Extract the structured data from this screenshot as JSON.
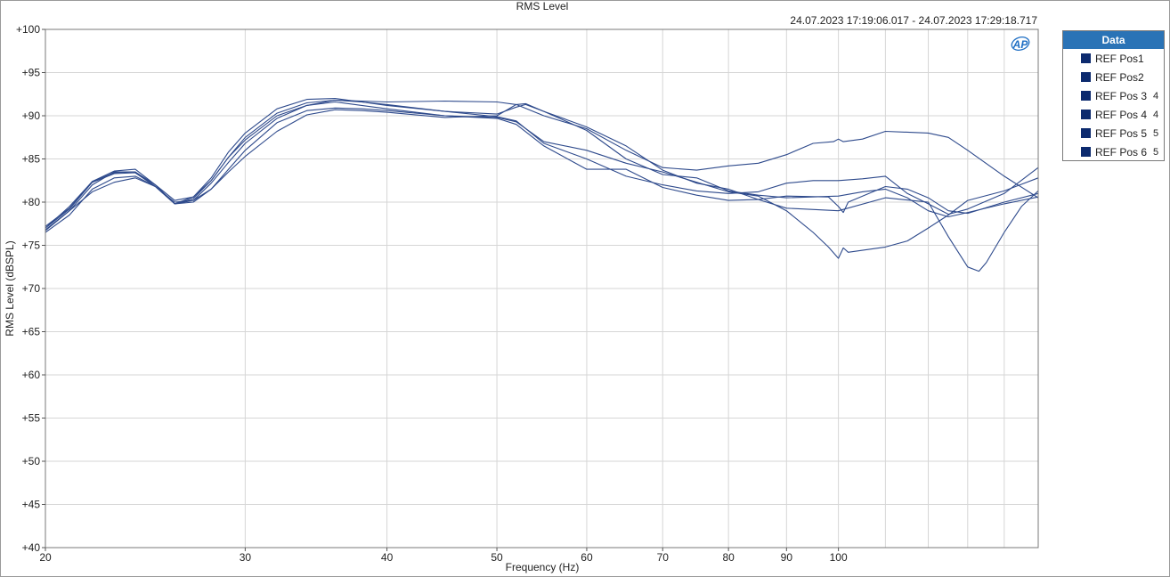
{
  "chart_data": {
    "type": "line",
    "title": "RMS Level",
    "subtitle": "24.07.2023 17:19:06.017 - 24.07.2023 17:29:18.717",
    "xlabel": "Frequency (Hz)",
    "ylabel": "RMS Level (dBSPL)",
    "x_scale": "log",
    "xlim": [
      20,
      150
    ],
    "ylim": [
      40,
      100
    ],
    "x_ticks": [
      20,
      30,
      40,
      50,
      60,
      70,
      80,
      90,
      100
    ],
    "x_tick_labels": [
      "20",
      "30",
      "40",
      "50",
      "60",
      "70",
      "80",
      "90",
      "100"
    ],
    "x_minor_ticks": [
      110,
      120,
      130,
      140
    ],
    "y_ticks": [
      40,
      45,
      50,
      55,
      60,
      65,
      70,
      75,
      80,
      85,
      90,
      95,
      100
    ],
    "y_tick_labels": [
      "+40",
      "+45",
      "+50",
      "+55",
      "+60",
      "+65",
      "+70",
      "+75",
      "+80",
      "+85",
      "+90",
      "+95",
      "+100"
    ],
    "grid": true,
    "legend_position": "right",
    "line_color": "#2e4a8c",
    "series": [
      {
        "name": "REF Pos1",
        "values": [
          [
            20,
            76.8
          ],
          [
            21,
            79
          ],
          [
            22,
            82
          ],
          [
            23,
            83.5
          ],
          [
            24,
            83.5
          ],
          [
            25,
            82
          ],
          [
            26,
            80.2
          ],
          [
            27,
            80.6
          ],
          [
            28,
            82.5
          ],
          [
            29,
            85.2
          ],
          [
            30,
            87.5
          ],
          [
            32,
            90.3
          ],
          [
            34,
            91.5
          ],
          [
            36,
            91.8
          ],
          [
            38,
            91.6
          ],
          [
            40,
            91.3
          ],
          [
            45,
            90.5
          ],
          [
            50,
            89.9
          ],
          [
            52,
            89.4
          ],
          [
            55,
            86.8
          ],
          [
            60,
            85
          ],
          [
            65,
            83
          ],
          [
            70,
            82
          ],
          [
            75,
            81.3
          ],
          [
            80,
            81
          ],
          [
            85,
            81.2
          ],
          [
            90,
            82.2
          ],
          [
            95,
            82.5
          ],
          [
            100,
            82.5
          ],
          [
            105,
            82.7
          ],
          [
            110,
            83
          ],
          [
            115,
            81
          ],
          [
            120,
            79.8
          ],
          [
            125,
            78.6
          ],
          [
            130,
            79.2
          ],
          [
            140,
            81
          ],
          [
            150,
            84
          ]
        ]
      },
      {
        "name": "REF Pos2",
        "values": [
          [
            20,
            76.5
          ],
          [
            21,
            78.5
          ],
          [
            22,
            81.5
          ],
          [
            23,
            82.8
          ],
          [
            24,
            83
          ],
          [
            25,
            81.8
          ],
          [
            26,
            79.8
          ],
          [
            27,
            80
          ],
          [
            28,
            81.5
          ],
          [
            29,
            83.8
          ],
          [
            30,
            86
          ],
          [
            32,
            89.2
          ],
          [
            34,
            90.6
          ],
          [
            36,
            90.9
          ],
          [
            38,
            90.8
          ],
          [
            40,
            90.6
          ],
          [
            45,
            90
          ],
          [
            50,
            89.8
          ],
          [
            52,
            89.3
          ],
          [
            55,
            87
          ],
          [
            60,
            86
          ],
          [
            65,
            84.5
          ],
          [
            70,
            83.5
          ],
          [
            75,
            82.3
          ],
          [
            80,
            81.2
          ],
          [
            85,
            80.7
          ],
          [
            90,
            79
          ],
          [
            95,
            76.5
          ],
          [
            98,
            74.8
          ],
          [
            100,
            73.5
          ],
          [
            101,
            74.7
          ],
          [
            102,
            74.2
          ],
          [
            110,
            74.8
          ],
          [
            115,
            75.5
          ],
          [
            120,
            77
          ],
          [
            125,
            78.5
          ],
          [
            130,
            80.2
          ],
          [
            140,
            81.3
          ],
          [
            150,
            82.8
          ]
        ]
      },
      {
        "name": "REF Pos 3",
        "suffix": "4",
        "values": [
          [
            20,
            77
          ],
          [
            21,
            79.5
          ],
          [
            22,
            82.4
          ],
          [
            23,
            83.6
          ],
          [
            24,
            83.8
          ],
          [
            25,
            82
          ],
          [
            26,
            79.8
          ],
          [
            27,
            80.2
          ],
          [
            28,
            82.2
          ],
          [
            29,
            84.6
          ],
          [
            30,
            86.8
          ],
          [
            32,
            89.7
          ],
          [
            34,
            91.2
          ],
          [
            36,
            91.8
          ],
          [
            38,
            91.7
          ],
          [
            40,
            91.6
          ],
          [
            45,
            91.7
          ],
          [
            50,
            91.6
          ],
          [
            52,
            91.3
          ],
          [
            55,
            90
          ],
          [
            60,
            88.5
          ],
          [
            65,
            86
          ],
          [
            70,
            84
          ],
          [
            75,
            83.7
          ],
          [
            80,
            84.2
          ],
          [
            85,
            84.5
          ],
          [
            90,
            85.5
          ],
          [
            95,
            86.8
          ],
          [
            99,
            87
          ],
          [
            100,
            87.3
          ],
          [
            101,
            87
          ],
          [
            105,
            87.3
          ],
          [
            110,
            88.2
          ],
          [
            120,
            88
          ],
          [
            125,
            87.5
          ],
          [
            130,
            86
          ],
          [
            140,
            83
          ],
          [
            150,
            80.5
          ]
        ]
      },
      {
        "name": "REF Pos 4",
        "suffix": "4",
        "values": [
          [
            20,
            77.2
          ],
          [
            21,
            79.3
          ],
          [
            22,
            82.4
          ],
          [
            23,
            83.4
          ],
          [
            24,
            83.5
          ],
          [
            25,
            81.8
          ],
          [
            26,
            79.8
          ],
          [
            27,
            80.6
          ],
          [
            28,
            82.8
          ],
          [
            29,
            85.8
          ],
          [
            30,
            88
          ],
          [
            32,
            90.8
          ],
          [
            34,
            91.9
          ],
          [
            36,
            92
          ],
          [
            38,
            91.6
          ],
          [
            40,
            91.2
          ],
          [
            45,
            90.5
          ],
          [
            50,
            90.2
          ],
          [
            52,
            91
          ],
          [
            53,
            91.3
          ],
          [
            55,
            90.5
          ],
          [
            60,
            88.7
          ],
          [
            65,
            86.5
          ],
          [
            70,
            83.7
          ],
          [
            75,
            82.2
          ],
          [
            80,
            81.5
          ],
          [
            85,
            80.3
          ],
          [
            90,
            79.3
          ],
          [
            100,
            79
          ],
          [
            110,
            80.5
          ],
          [
            120,
            80
          ],
          [
            125,
            76
          ],
          [
            130,
            72.5
          ],
          [
            133,
            72
          ],
          [
            135,
            73
          ],
          [
            140,
            76.5
          ],
          [
            145,
            79.5
          ],
          [
            150,
            81.3
          ]
        ]
      },
      {
        "name": "REF Pos 5",
        "suffix": "5",
        "values": [
          [
            20,
            76.7
          ],
          [
            21,
            79
          ],
          [
            22,
            81.2
          ],
          [
            23,
            82.3
          ],
          [
            24,
            82.8
          ],
          [
            25,
            81.8
          ],
          [
            26,
            80
          ],
          [
            27,
            80.2
          ],
          [
            28,
            81.5
          ],
          [
            29,
            83.5
          ],
          [
            30,
            85.3
          ],
          [
            32,
            88.2
          ],
          [
            34,
            90.1
          ],
          [
            36,
            90.7
          ],
          [
            38,
            90.6
          ],
          [
            40,
            90.4
          ],
          [
            45,
            89.8
          ],
          [
            50,
            90
          ],
          [
            52,
            91.3
          ],
          [
            53,
            91.4
          ],
          [
            55,
            90.5
          ],
          [
            60,
            88.3
          ],
          [
            65,
            85
          ],
          [
            70,
            83.2
          ],
          [
            75,
            82.8
          ],
          [
            80,
            81.3
          ],
          [
            85,
            80.8
          ],
          [
            90,
            80.5
          ],
          [
            100,
            80.7
          ],
          [
            105,
            81.2
          ],
          [
            110,
            81.5
          ],
          [
            115,
            80.5
          ],
          [
            120,
            79
          ],
          [
            125,
            78.3
          ],
          [
            130,
            78.8
          ],
          [
            140,
            79.8
          ],
          [
            150,
            80.6
          ]
        ]
      },
      {
        "name": "REF Pos 6",
        "suffix": "5",
        "values": [
          [
            20,
            77
          ],
          [
            21,
            79.2
          ],
          [
            22,
            82.3
          ],
          [
            23,
            83.3
          ],
          [
            24,
            83.4
          ],
          [
            25,
            81.8
          ],
          [
            26,
            79.8
          ],
          [
            27,
            80.4
          ],
          [
            28,
            82.5
          ],
          [
            29,
            85.2
          ],
          [
            30,
            87.2
          ],
          [
            32,
            90
          ],
          [
            34,
            91.2
          ],
          [
            36,
            91.6
          ],
          [
            38,
            91.2
          ],
          [
            40,
            90.8
          ],
          [
            45,
            90
          ],
          [
            50,
            89.7
          ],
          [
            52,
            89
          ],
          [
            55,
            86.5
          ],
          [
            60,
            83.8
          ],
          [
            65,
            83.8
          ],
          [
            70,
            81.7
          ],
          [
            75,
            80.8
          ],
          [
            80,
            80.2
          ],
          [
            85,
            80.3
          ],
          [
            90,
            80.7
          ],
          [
            98,
            80.6
          ],
          [
            100,
            79.5
          ],
          [
            101,
            78.8
          ],
          [
            102,
            80
          ],
          [
            110,
            81.8
          ],
          [
            115,
            81.5
          ],
          [
            120,
            80.5
          ],
          [
            125,
            79
          ],
          [
            130,
            78.7
          ],
          [
            140,
            80
          ],
          [
            150,
            81
          ]
        ]
      }
    ]
  },
  "logo": {
    "text": "AP"
  },
  "legend": {
    "header": "Data"
  }
}
